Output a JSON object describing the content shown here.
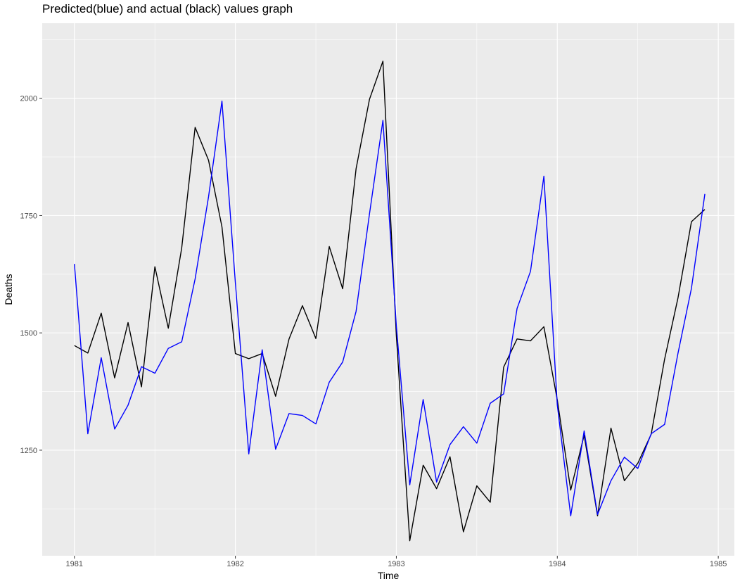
{
  "chart_data": {
    "type": "line",
    "title": "Predicted(blue) and actual (black) values graph",
    "xlabel": "Time",
    "ylabel": "Deaths",
    "xlim": [
      1980.8,
      1985.1
    ],
    "ylim": [
      1025,
      2160
    ],
    "x_ticks": [
      1981,
      1982,
      1983,
      1984,
      1985
    ],
    "x_tick_labels": [
      "1981",
      "1982",
      "1983",
      "1984",
      "1985"
    ],
    "y_ticks": [
      1250,
      1500,
      1750,
      2000
    ],
    "y_tick_labels": [
      "1250",
      "1500",
      "1750",
      "2000"
    ],
    "grid": true,
    "legend": "none",
    "x_start": 1981,
    "x_step": 0.083333,
    "series": [
      {
        "color": "#000000",
        "values": [
          1473,
          1457,
          1542,
          1404,
          1522,
          1385,
          1641,
          1510,
          1681,
          1938,
          1868,
          1726,
          1456,
          1445,
          1456,
          1365,
          1487,
          1558,
          1488,
          1684,
          1594,
          1850,
          1998,
          2079,
          1494,
          1057,
          1218,
          1168,
          1236,
          1076,
          1174,
          1139,
          1427,
          1487,
          1483,
          1513,
          1357,
          1165,
          1282,
          1110,
          1297,
          1185,
          1222,
          1284,
          1444,
          1575,
          1737,
          1763
        ]
      },
      {
        "color": "#0000ff",
        "values": [
          1647,
          1285,
          1447,
          1295,
          1346,
          1428,
          1414,
          1467,
          1481,
          1615,
          1790,
          1994,
          1607,
          1242,
          1464,
          1252,
          1328,
          1324,
          1306,
          1395,
          1438,
          1546,
          1754,
          1953,
          1515,
          1176,
          1358,
          1182,
          1262,
          1300,
          1265,
          1350,
          1370,
          1552,
          1631,
          1834,
          1346,
          1110,
          1291,
          1113,
          1185,
          1235,
          1211,
          1285,
          1305,
          1457,
          1595,
          1796
        ]
      }
    ]
  }
}
